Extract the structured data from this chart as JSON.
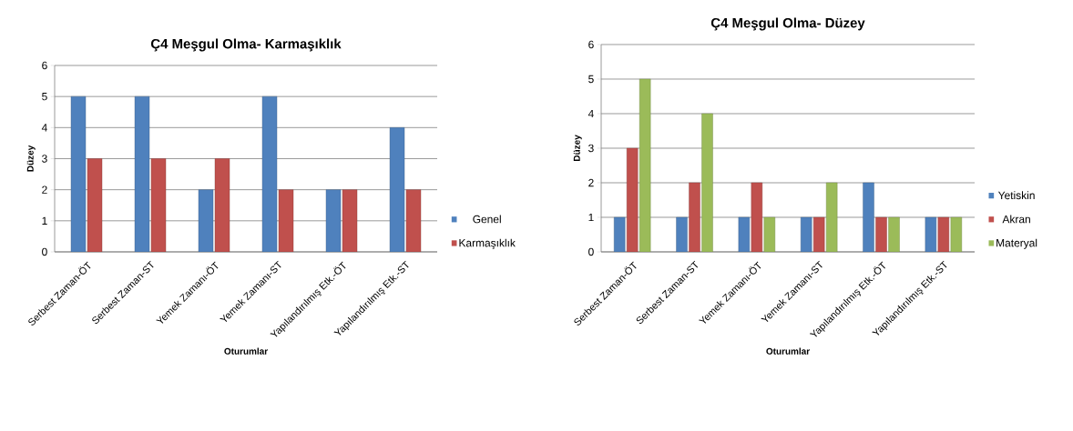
{
  "chart_data": [
    {
      "type": "bar",
      "title": "Ç4 Meşgul Olma- Karmaşıklık",
      "xlabel": "Oturumlar",
      "ylabel": "Düzey",
      "categories": [
        "Serbest Zaman-ÖT",
        "Serbest Zaman-ST",
        "Yemek Zamanı-ÖT",
        "Yemek Zamanı-ST",
        "Yapılandırılmış Etk.-ÖT",
        "Yapılandırılmış Etk.-ST"
      ],
      "series": [
        {
          "name": "Genel",
          "color": "#4f81bd",
          "values": [
            5,
            5,
            2,
            5,
            2,
            4
          ]
        },
        {
          "name": "Karmaşıklık",
          "color": "#c0504d",
          "values": [
            3,
            3,
            3,
            2,
            2,
            2
          ]
        }
      ],
      "ylim": [
        0,
        6
      ],
      "yticks": [
        0,
        1,
        2,
        3,
        4,
        5,
        6
      ],
      "grid": "y",
      "legend": "right"
    },
    {
      "type": "bar",
      "title": "Ç4 Meşgul Olma- Düzey",
      "xlabel": "Oturumlar",
      "ylabel": "Düzey",
      "categories": [
        "Serbest Zaman-ÖT",
        "Serbest Zaman-ST",
        "Yemek Zamanı-ÖT",
        "Yemek Zamanı-ST",
        "Yapılandırılmış Etk.-ÖT",
        "Yapılandırılmış Etk.-ST"
      ],
      "series": [
        {
          "name": "Yetiskin",
          "color": "#4f81bd",
          "values": [
            1,
            1,
            1,
            1,
            2,
            1
          ]
        },
        {
          "name": "Akran",
          "color": "#c0504d",
          "values": [
            3,
            2,
            2,
            1,
            1,
            1
          ]
        },
        {
          "name": "Materyal",
          "color": "#9bbb59",
          "values": [
            5,
            4,
            1,
            2,
            1,
            1
          ]
        }
      ],
      "ylim": [
        0,
        6
      ],
      "yticks": [
        0,
        1,
        2,
        3,
        4,
        5,
        6
      ],
      "grid": "y",
      "legend": "right"
    }
  ]
}
